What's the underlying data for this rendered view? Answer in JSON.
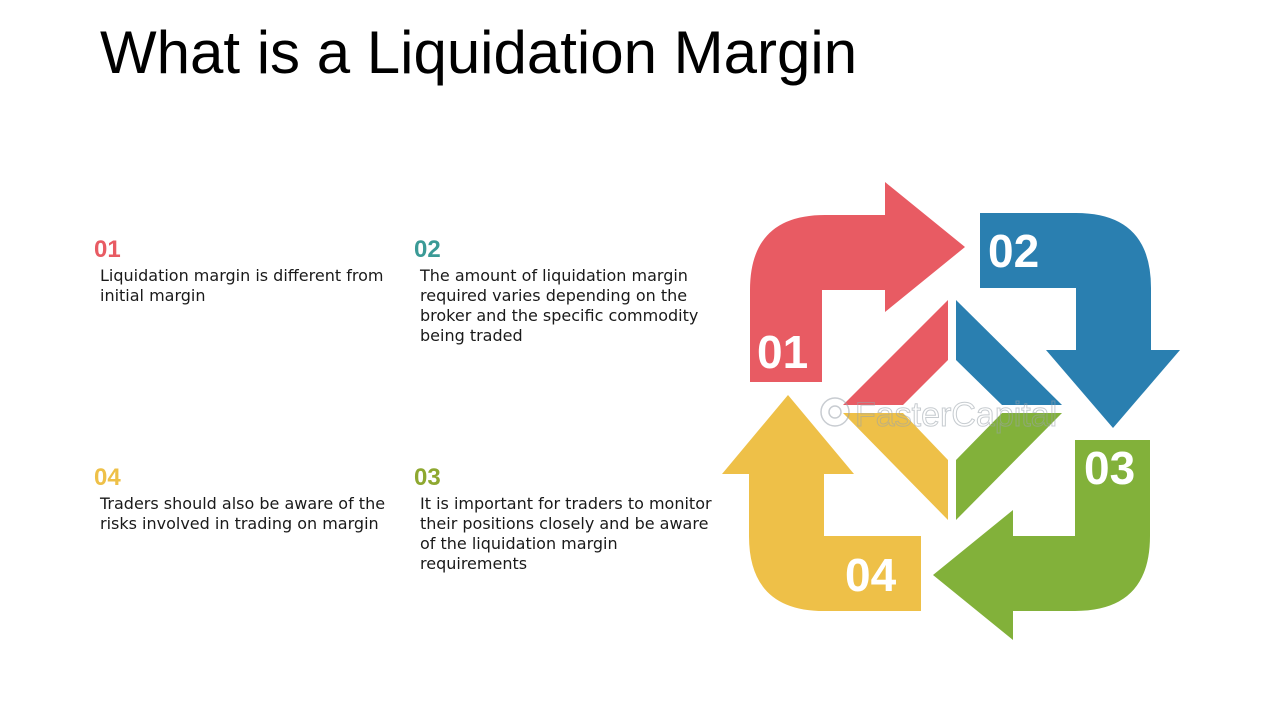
{
  "title": "What is a Liquidation Margin",
  "colors": {
    "step1": "#e85b63",
    "step2": "#2a7fb0",
    "step3": "#82b13a",
    "step4": "#eec048",
    "num2_text": "#3a9a96",
    "num3_text": "#8ea830"
  },
  "items": [
    {
      "number": "01",
      "text": "Liquidation margin is different from initial margin"
    },
    {
      "number": "02",
      "text": "The amount of liquidation margin required varies depending on the broker and the specific commodity being traded"
    },
    {
      "number": "03",
      "text": "It is important for traders to monitor their positions closely and be aware of the liquidation margin requirements"
    },
    {
      "number": "04",
      "text": "Traders should also be aware of the risks involved in trading on margin"
    }
  ],
  "diagram": {
    "labels": [
      "01",
      "02",
      "03",
      "04"
    ],
    "watermark": "FasterCapital"
  }
}
